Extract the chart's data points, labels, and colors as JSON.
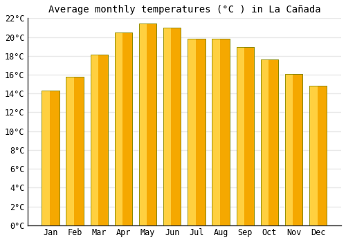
{
  "title": "Average monthly temperatures (°C ) in La Cañada",
  "months": [
    "Jan",
    "Feb",
    "Mar",
    "Apr",
    "May",
    "Jun",
    "Jul",
    "Aug",
    "Sep",
    "Oct",
    "Nov",
    "Dec"
  ],
  "values": [
    14.3,
    15.8,
    18.1,
    20.5,
    21.4,
    21.0,
    19.8,
    19.8,
    18.9,
    17.6,
    16.1,
    14.8
  ],
  "bar_color_left": "#FFD040",
  "bar_color_right": "#F5A800",
  "bar_edge_color": "#888800",
  "ylim": [
    0,
    22
  ],
  "ytick_step": 2,
  "background_color": "#ffffff",
  "grid_color": "#e8e8e8",
  "title_fontsize": 10,
  "tick_fontsize": 8.5,
  "font_family": "monospace"
}
